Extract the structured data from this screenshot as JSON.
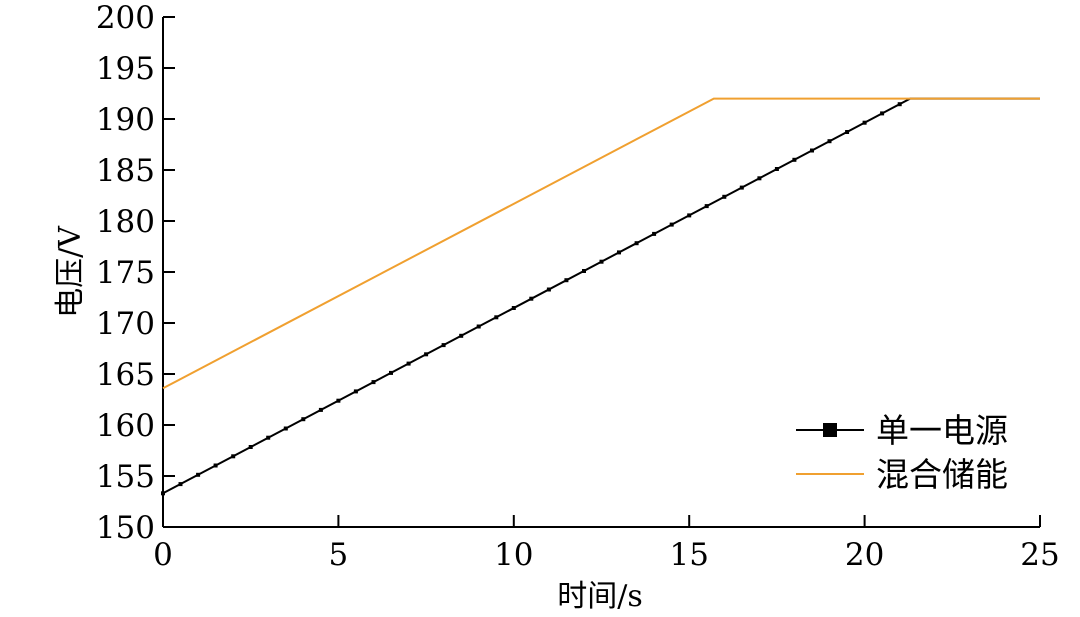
{
  "chart_data": {
    "type": "line",
    "title": "",
    "xlabel": "时间/s",
    "ylabel": "电压/V",
    "xlim": [
      0,
      25
    ],
    "ylim": [
      150,
      200
    ],
    "x_ticks": [
      "0",
      "5",
      "10",
      "15",
      "20",
      "25"
    ],
    "y_ticks": [
      "150",
      "155",
      "160",
      "165",
      "170",
      "175",
      "180",
      "185",
      "190",
      "195",
      "200"
    ],
    "grid": false,
    "legend_position": "bottom-right",
    "series": [
      {
        "name": "单一电源",
        "color": "#000000",
        "marker": "square",
        "x": [
          0,
          21.3,
          25
        ],
        "y": [
          153.3,
          192,
          192
        ]
      },
      {
        "name": "混合储能",
        "color": "#f0a030",
        "marker": "none",
        "x": [
          0,
          15.7,
          25
        ],
        "y": [
          163.6,
          192,
          192
        ]
      }
    ]
  }
}
